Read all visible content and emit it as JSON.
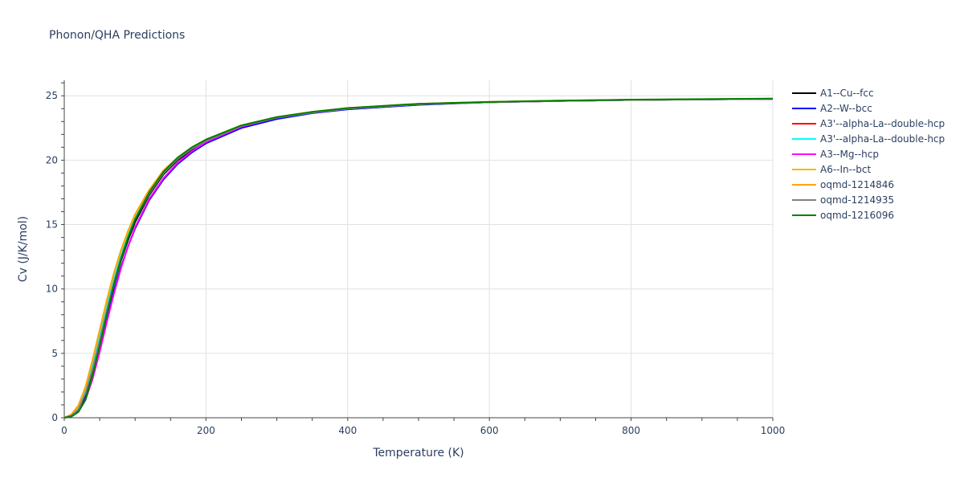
{
  "chart_data": {
    "type": "line",
    "title": "Phonon/QHA Predictions",
    "xlabel": "Temperature (K)",
    "ylabel": "Cv (J/K/mol)",
    "xlim": [
      0,
      1000
    ],
    "ylim": [
      0,
      26.2
    ],
    "x_ticks": [
      0,
      200,
      400,
      600,
      800,
      1000
    ],
    "y_ticks": [
      0,
      5,
      10,
      15,
      20,
      25
    ],
    "grid": true,
    "legend_position": "right",
    "series": [
      {
        "name": "A1--Cu--fcc",
        "color": "#000000",
        "x": [
          0,
          10,
          20,
          30,
          40,
          50,
          60,
          70,
          80,
          90,
          100,
          120,
          140,
          160,
          180,
          200,
          250,
          300,
          350,
          400,
          500,
          600,
          700,
          800,
          900,
          1000
        ],
        "y": [
          0,
          0.15,
          0.6,
          1.8,
          3.6,
          5.8,
          8.1,
          10.3,
          12.2,
          13.8,
          15.2,
          17.3,
          18.9,
          20.0,
          20.8,
          21.4,
          22.6,
          23.3,
          23.7,
          24.0,
          24.35,
          24.5,
          24.6,
          24.68,
          24.72,
          24.76
        ]
      },
      {
        "name": "A2--W--bcc",
        "color": "#0000ff",
        "x": [
          0,
          10,
          20,
          30,
          40,
          50,
          60,
          70,
          80,
          90,
          100,
          120,
          140,
          160,
          180,
          200,
          250,
          300,
          350,
          400,
          500,
          600,
          700,
          800,
          900,
          1000
        ],
        "y": [
          0,
          0.1,
          0.5,
          1.5,
          3.2,
          5.3,
          7.6,
          9.8,
          11.7,
          13.3,
          14.7,
          16.9,
          18.5,
          19.7,
          20.6,
          21.3,
          22.5,
          23.2,
          23.65,
          23.95,
          24.3,
          24.5,
          24.6,
          24.68,
          24.72,
          24.76
        ]
      },
      {
        "name": "A3'--alpha-La--double-hcp",
        "color": "#ff0000",
        "x": [
          0,
          10,
          20,
          30,
          40,
          50,
          60,
          70,
          80,
          90,
          100,
          120,
          140,
          160,
          180,
          200,
          250,
          300,
          350,
          400,
          500,
          600,
          700,
          800,
          900,
          1000
        ],
        "y": [
          0,
          0.2,
          0.8,
          2.2,
          4.2,
          6.5,
          8.8,
          10.9,
          12.7,
          14.2,
          15.5,
          17.5,
          19.0,
          20.1,
          20.9,
          21.5,
          22.65,
          23.3,
          23.7,
          24.0,
          24.35,
          24.5,
          24.6,
          24.68,
          24.72,
          24.76
        ]
      },
      {
        "name": "A3'--alpha-La--double-hcp",
        "color": "#00ffff",
        "x": [
          0,
          10,
          20,
          30,
          40,
          50,
          60,
          70,
          80,
          90,
          100,
          120,
          140,
          160,
          180,
          200,
          250,
          300,
          350,
          400,
          500,
          600,
          700,
          800,
          900,
          1000
        ],
        "y": [
          0,
          0.2,
          0.8,
          2.2,
          4.2,
          6.5,
          8.8,
          10.9,
          12.7,
          14.2,
          15.5,
          17.5,
          19.0,
          20.1,
          20.9,
          21.5,
          22.65,
          23.3,
          23.7,
          24.0,
          24.35,
          24.5,
          24.6,
          24.68,
          24.72,
          24.76
        ]
      },
      {
        "name": "A3--Mg--hcp",
        "color": "#ff00ff",
        "x": [
          0,
          10,
          20,
          30,
          40,
          50,
          60,
          70,
          80,
          90,
          100,
          120,
          140,
          160,
          180,
          200,
          250,
          300,
          350,
          400,
          500,
          600,
          700,
          800,
          900,
          1000
        ],
        "y": [
          0,
          0.08,
          0.45,
          1.4,
          3.0,
          5.1,
          7.4,
          9.6,
          11.6,
          13.3,
          14.8,
          17.0,
          18.6,
          19.8,
          20.7,
          21.4,
          22.6,
          23.3,
          23.7,
          24.0,
          24.35,
          24.5,
          24.6,
          24.68,
          24.72,
          24.76
        ]
      },
      {
        "name": "A6--In--bct",
        "color": "#f5b800",
        "x": [
          0,
          10,
          20,
          30,
          40,
          50,
          60,
          70,
          80,
          90,
          100,
          120,
          140,
          160,
          180,
          200,
          250,
          300,
          350,
          400,
          500,
          600,
          700,
          800,
          900,
          1000
        ],
        "y": [
          0,
          0.25,
          0.95,
          2.4,
          4.5,
          6.8,
          9.1,
          11.2,
          13.0,
          14.5,
          15.8,
          17.7,
          19.2,
          20.2,
          21.0,
          21.6,
          22.7,
          23.35,
          23.75,
          24.05,
          24.38,
          24.52,
          24.62,
          24.69,
          24.73,
          24.77
        ]
      },
      {
        "name": "oqmd-1214846",
        "color": "#ffa500",
        "x": [
          0,
          10,
          20,
          30,
          40,
          50,
          60,
          70,
          80,
          90,
          100,
          120,
          140,
          160,
          180,
          200,
          250,
          300,
          350,
          400,
          500,
          600,
          700,
          800,
          900,
          1000
        ],
        "y": [
          0,
          0.25,
          0.95,
          2.4,
          4.5,
          6.8,
          9.1,
          11.2,
          13.0,
          14.5,
          15.8,
          17.7,
          19.2,
          20.2,
          21.0,
          21.6,
          22.7,
          23.35,
          23.75,
          24.05,
          24.38,
          24.52,
          24.62,
          24.69,
          24.73,
          24.77
        ]
      },
      {
        "name": "oqmd-1214935",
        "color": "#808080",
        "x": [
          0,
          10,
          20,
          30,
          40,
          50,
          60,
          70,
          80,
          90,
          100,
          120,
          140,
          160,
          180,
          200,
          250,
          300,
          350,
          400,
          500,
          600,
          700,
          800,
          900,
          1000
        ],
        "y": [
          0,
          0.15,
          0.65,
          1.9,
          3.8,
          6.0,
          8.3,
          10.5,
          12.4,
          14.0,
          15.4,
          17.4,
          19.0,
          20.1,
          20.9,
          21.5,
          22.65,
          23.3,
          23.7,
          24.0,
          24.35,
          24.5,
          24.6,
          24.68,
          24.72,
          24.76
        ]
      },
      {
        "name": "oqmd-1216096",
        "color": "#008000",
        "x": [
          0,
          10,
          20,
          30,
          40,
          50,
          60,
          70,
          80,
          90,
          100,
          120,
          140,
          160,
          180,
          200,
          250,
          300,
          350,
          400,
          500,
          600,
          700,
          800,
          900,
          1000
        ],
        "y": [
          0,
          0.1,
          0.45,
          1.4,
          3.3,
          5.6,
          8.0,
          10.3,
          12.3,
          14.0,
          15.4,
          17.5,
          19.1,
          20.2,
          21.0,
          21.6,
          22.7,
          23.35,
          23.75,
          24.05,
          24.38,
          24.52,
          24.62,
          24.7,
          24.74,
          24.78
        ]
      }
    ]
  }
}
